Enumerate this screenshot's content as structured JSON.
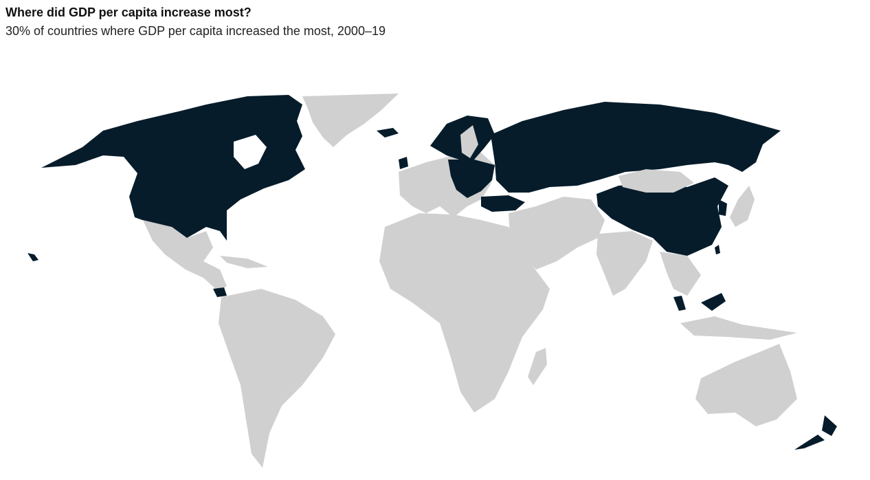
{
  "header": {
    "title": "Where did GDP per capita increase most?",
    "subtitle": "30% of countries where GDP per capita increased the most, 2000–19"
  },
  "legend": {
    "highlight_color": "#061c2b",
    "base_color": "#d0d0d0"
  },
  "highlighted_regions": [
    "United States",
    "Canada",
    "Panama",
    "Ireland",
    "Iceland",
    "Norway",
    "Finland",
    "Russia",
    "China",
    "South Korea",
    "Malaysia",
    "Turkey",
    "Poland",
    "New Zealand",
    "Baltic states",
    "Taiwan"
  ]
}
